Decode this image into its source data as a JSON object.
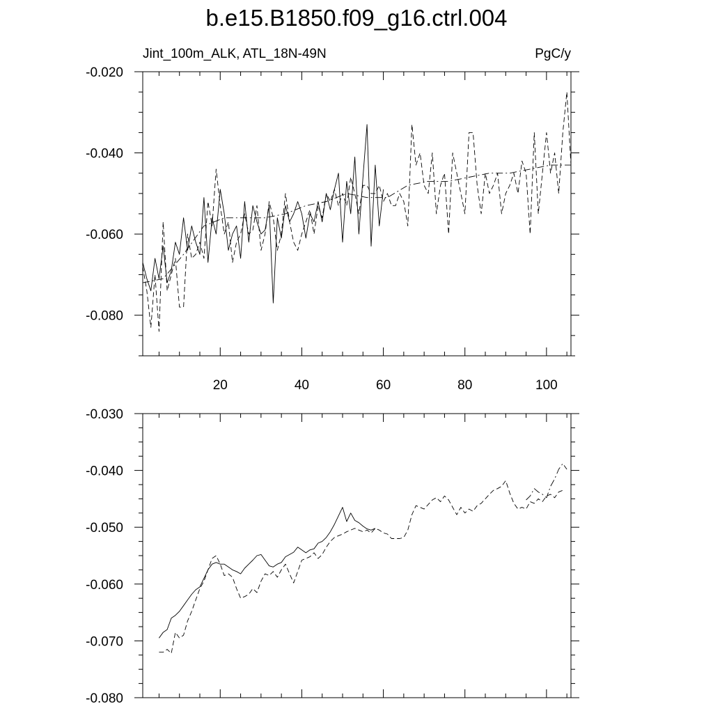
{
  "title": "b.e15.B1850.f09_g16.ctrl.004",
  "chart_data": [
    {
      "type": "line",
      "left_label": "Jint_100m_ALK, ATL_18N-49N",
      "right_label": "PgC/y",
      "xlim": [
        1,
        106
      ],
      "ylim": [
        -0.09,
        -0.02
      ],
      "xticks": [
        20,
        40,
        60,
        80,
        100
      ],
      "xtick_labels": [
        "20",
        "40",
        "60",
        "80",
        "100"
      ],
      "yticks": [
        -0.02,
        -0.04,
        -0.06,
        -0.08
      ],
      "ytick_labels": [
        "-0.020",
        "-0.040",
        "-0.060",
        "-0.080"
      ],
      "grid": false,
      "series": [
        {
          "style": "solid",
          "x": [
            1,
            2,
            3,
            4,
            5,
            6,
            7,
            8,
            9,
            10,
            11,
            12,
            13,
            14,
            15,
            16,
            17,
            18,
            19,
            20,
            21,
            22,
            23,
            24,
            25,
            26,
            27,
            28,
            29,
            30,
            31,
            32,
            33,
            34,
            35,
            36,
            37,
            38,
            39,
            40,
            41,
            42,
            43,
            44,
            45,
            46,
            47,
            48,
            49,
            50,
            51,
            52,
            53,
            54,
            55,
            56,
            57,
            58,
            59,
            60
          ],
          "values": [
            -0.067,
            -0.071,
            -0.074,
            -0.066,
            -0.071,
            -0.063,
            -0.072,
            -0.069,
            -0.062,
            -0.065,
            -0.056,
            -0.064,
            -0.058,
            -0.062,
            -0.065,
            -0.051,
            -0.067,
            -0.056,
            -0.06,
            -0.049,
            -0.055,
            -0.064,
            -0.06,
            -0.058,
            -0.066,
            -0.052,
            -0.062,
            -0.053,
            -0.057,
            -0.06,
            -0.059,
            -0.053,
            -0.077,
            -0.056,
            -0.061,
            -0.053,
            -0.057,
            -0.055,
            -0.052,
            -0.055,
            -0.061,
            -0.055,
            -0.057,
            -0.052,
            -0.057,
            -0.05,
            -0.054,
            -0.049,
            -0.045,
            -0.062,
            -0.047,
            -0.055,
            -0.041,
            -0.06,
            -0.046,
            -0.033,
            -0.063,
            -0.043,
            -0.058,
            -0.049
          ]
        },
        {
          "style": "dashed",
          "x": [
            1,
            2,
            3,
            4,
            5,
            6,
            7,
            8,
            9,
            10,
            11,
            12,
            13,
            14,
            15,
            16,
            17,
            18,
            19,
            20,
            21,
            22,
            23,
            24,
            25,
            26,
            27,
            28,
            29,
            30,
            31,
            32,
            33,
            34,
            35,
            36,
            37,
            38,
            39,
            40,
            41,
            42,
            43,
            44,
            45,
            46,
            47,
            48,
            49,
            50,
            51,
            52,
            53,
            54,
            55,
            56,
            57,
            58,
            59,
            60,
            61,
            62,
            63,
            64,
            65,
            66,
            67,
            68,
            69,
            70,
            71,
            72,
            73,
            74,
            75,
            76,
            77,
            78,
            79,
            80,
            81,
            82,
            83,
            84,
            85,
            86,
            87,
            88,
            89,
            90,
            91,
            92,
            93,
            94,
            95,
            96,
            97,
            98,
            99,
            100,
            101,
            102,
            103,
            104,
            105,
            106
          ],
          "values": [
            -0.068,
            -0.074,
            -0.083,
            -0.07,
            -0.084,
            -0.057,
            -0.074,
            -0.07,
            -0.066,
            -0.078,
            -0.078,
            -0.06,
            -0.066,
            -0.065,
            -0.062,
            -0.066,
            -0.052,
            -0.058,
            -0.044,
            -0.053,
            -0.06,
            -0.057,
            -0.067,
            -0.062,
            -0.06,
            -0.055,
            -0.06,
            -0.059,
            -0.053,
            -0.064,
            -0.06,
            -0.052,
            -0.056,
            -0.064,
            -0.06,
            -0.05,
            -0.057,
            -0.062,
            -0.064,
            -0.06,
            -0.057,
            -0.054,
            -0.06,
            -0.053,
            -0.056,
            -0.05,
            -0.052,
            -0.049,
            -0.053,
            -0.05,
            -0.053,
            -0.046,
            -0.05,
            -0.055,
            -0.048,
            -0.048,
            -0.05,
            -0.05,
            -0.048,
            -0.052,
            -0.05,
            -0.053,
            -0.053,
            -0.05,
            -0.052,
            -0.058,
            -0.033,
            -0.043,
            -0.04,
            -0.048,
            -0.05,
            -0.04,
            -0.055,
            -0.048,
            -0.045,
            -0.06,
            -0.04,
            -0.045,
            -0.05,
            -0.055,
            -0.035,
            -0.035,
            -0.048,
            -0.055,
            -0.045,
            -0.05,
            -0.048,
            -0.045,
            -0.055,
            -0.05,
            -0.048,
            -0.045,
            -0.05,
            -0.042,
            -0.045,
            -0.06,
            -0.035,
            -0.055,
            -0.045,
            -0.035,
            -0.045,
            -0.04,
            -0.05,
            -0.035,
            -0.025,
            -0.043
          ]
        },
        {
          "style": "dash-dot",
          "x": [
            1,
            6,
            11,
            16,
            21,
            26,
            31,
            36,
            41,
            46,
            51,
            56,
            61,
            66,
            71,
            76,
            81,
            86,
            91,
            96,
            101,
            106
          ],
          "values": [
            -0.072,
            -0.071,
            -0.065,
            -0.058,
            -0.056,
            -0.056,
            -0.056,
            -0.055,
            -0.053,
            -0.052,
            -0.05,
            -0.051,
            -0.051,
            -0.048,
            -0.047,
            -0.047,
            -0.046,
            -0.045,
            -0.045,
            -0.044,
            -0.043,
            -0.043
          ]
        }
      ]
    },
    {
      "type": "line",
      "xlim": [
        1,
        106
      ],
      "ylim": [
        -0.08,
        -0.03
      ],
      "xticks": [
        20,
        40,
        60,
        80,
        100
      ],
      "yticks": [
        -0.03,
        -0.04,
        -0.05,
        -0.06,
        -0.07,
        -0.08
      ],
      "ytick_labels": [
        "-0.030",
        "-0.040",
        "-0.050",
        "-0.060",
        "-0.070",
        "-0.080"
      ],
      "grid": false,
      "series": [
        {
          "style": "solid",
          "x": [
            5,
            6,
            7,
            8,
            9,
            10,
            11,
            12,
            13,
            14,
            15,
            16,
            17,
            18,
            19,
            20,
            21,
            22,
            23,
            24,
            25,
            26,
            27,
            28,
            29,
            30,
            31,
            32,
            33,
            34,
            35,
            36,
            37,
            38,
            39,
            40,
            41,
            42,
            43,
            44,
            45,
            46,
            47,
            48,
            49,
            50,
            51,
            52,
            53,
            54,
            55,
            56,
            57,
            58
          ],
          "values": [
            -0.0695,
            -0.0685,
            -0.068,
            -0.066,
            -0.0655,
            -0.0648,
            -0.0638,
            -0.0628,
            -0.0618,
            -0.061,
            -0.0605,
            -0.059,
            -0.0575,
            -0.0565,
            -0.0562,
            -0.0565,
            -0.0565,
            -0.057,
            -0.0575,
            -0.0578,
            -0.0582,
            -0.0572,
            -0.0565,
            -0.0558,
            -0.055,
            -0.0548,
            -0.0558,
            -0.0568,
            -0.057,
            -0.0565,
            -0.0562,
            -0.0552,
            -0.0548,
            -0.0544,
            -0.0535,
            -0.054,
            -0.0545,
            -0.054,
            -0.0538,
            -0.0528,
            -0.0525,
            -0.0518,
            -0.0508,
            -0.0495,
            -0.048,
            -0.0465,
            -0.049,
            -0.0475,
            -0.0488,
            -0.0492,
            -0.0498,
            -0.0503,
            -0.0505,
            -0.0502
          ]
        },
        {
          "style": "dashed",
          "x": [
            5,
            6,
            7,
            8,
            9,
            10,
            11,
            12,
            13,
            14,
            15,
            16,
            17,
            18,
            19,
            20,
            21,
            22,
            23,
            24,
            25,
            26,
            27,
            28,
            29,
            30,
            31,
            32,
            33,
            34,
            35,
            36,
            37,
            38,
            39,
            40,
            41,
            42,
            43,
            44,
            45,
            46,
            47,
            48,
            49,
            50,
            51,
            52,
            53,
            54,
            55,
            56,
            57,
            58,
            59,
            60,
            61,
            62,
            63,
            64,
            65,
            66,
            67,
            68,
            69,
            70,
            71,
            72,
            73,
            74,
            75,
            76,
            77,
            78,
            79,
            80,
            81,
            82,
            83,
            84,
            85,
            86,
            87,
            88,
            89,
            90,
            91,
            92,
            93,
            94,
            95,
            96,
            97,
            98,
            99,
            100,
            101,
            102,
            103,
            104
          ],
          "values": [
            -0.072,
            -0.072,
            -0.0715,
            -0.0722,
            -0.0685,
            -0.0695,
            -0.069,
            -0.0665,
            -0.0648,
            -0.0628,
            -0.0608,
            -0.0595,
            -0.0575,
            -0.0555,
            -0.055,
            -0.0565,
            -0.0585,
            -0.0582,
            -0.0588,
            -0.0608,
            -0.0625,
            -0.0622,
            -0.0618,
            -0.0608,
            -0.0615,
            -0.0595,
            -0.0582,
            -0.0585,
            -0.0578,
            -0.0588,
            -0.0575,
            -0.0565,
            -0.0582,
            -0.0598,
            -0.0578,
            -0.0558,
            -0.0555,
            -0.0552,
            -0.0545,
            -0.0555,
            -0.0548,
            -0.0535,
            -0.0525,
            -0.0518,
            -0.0515,
            -0.0512,
            -0.0508,
            -0.0505,
            -0.0502,
            -0.0505,
            -0.0508,
            -0.0505,
            -0.051,
            -0.0502,
            -0.0505,
            -0.051,
            -0.0512,
            -0.052,
            -0.052,
            -0.052,
            -0.0518,
            -0.0505,
            -0.0478,
            -0.0462,
            -0.0465,
            -0.0468,
            -0.046,
            -0.0452,
            -0.0448,
            -0.0455,
            -0.0445,
            -0.0452,
            -0.0465,
            -0.0478,
            -0.0465,
            -0.0475,
            -0.0468,
            -0.0472,
            -0.0462,
            -0.0458,
            -0.045,
            -0.0442,
            -0.0435,
            -0.0432,
            -0.0428,
            -0.0418,
            -0.044,
            -0.0458,
            -0.0468,
            -0.0465,
            -0.0468,
            -0.0455,
            -0.0458,
            -0.045,
            -0.0455,
            -0.0445,
            -0.0442,
            -0.0448,
            -0.0438,
            -0.0435
          ]
        },
        {
          "style": "dash-dot",
          "x": [
            95,
            96,
            97,
            98,
            99,
            100,
            101,
            102,
            103,
            104,
            105
          ],
          "values": [
            -0.0452,
            -0.0445,
            -0.0432,
            -0.0438,
            -0.0442,
            -0.0448,
            -0.0428,
            -0.0415,
            -0.0398,
            -0.0388,
            -0.0398
          ]
        }
      ]
    }
  ]
}
